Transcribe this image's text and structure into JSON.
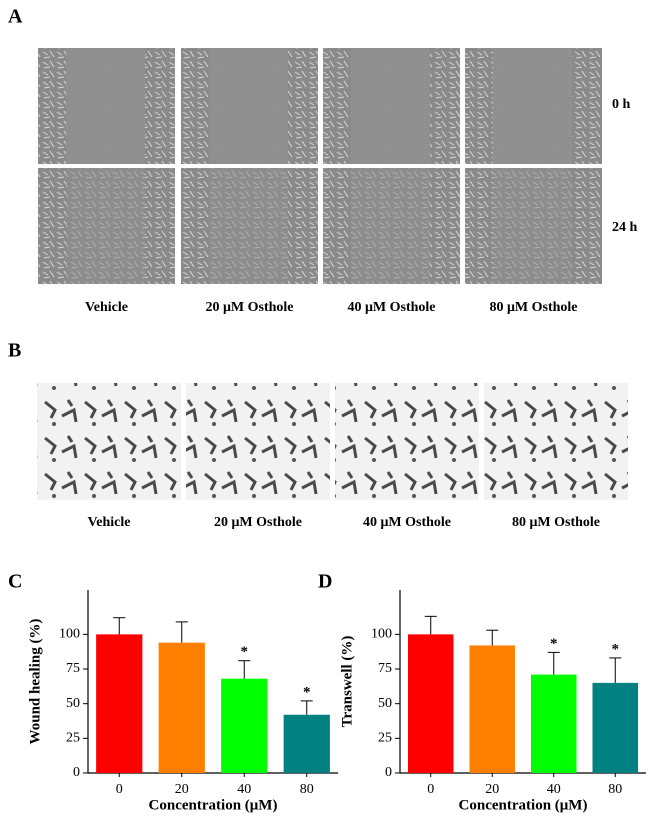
{
  "panel_labels": [
    "A",
    "B",
    "C",
    "D"
  ],
  "wound_images": {
    "timepoints": [
      "0 h",
      "24 h"
    ],
    "conditions": [
      "Vehicle",
      "20 μM Osthole",
      "40 μM Osthole",
      "80 μM Osthole"
    ]
  },
  "transwell_images": {
    "conditions": [
      "Vehicle",
      "20 μM Osthole",
      "40 μM Osthole",
      "80 μM Osthole"
    ]
  },
  "chart_data": [
    {
      "type": "bar",
      "x_label": "Concentration (μM)",
      "y_label": "Wound healing (%)",
      "categories": [
        "0",
        "20",
        "40",
        "80"
      ],
      "values": [
        100,
        94,
        68,
        42
      ],
      "errors": [
        12,
        15,
        13,
        10
      ],
      "colors": [
        "#ff0000",
        "#ff8000",
        "#00ff00",
        "#008080"
      ],
      "ylim": [
        0,
        132
      ],
      "yticks": [
        0,
        25,
        50,
        75,
        100
      ],
      "annotations": [
        {
          "index": 2,
          "text": "*"
        },
        {
          "index": 3,
          "text": "*"
        }
      ]
    },
    {
      "type": "bar",
      "x_label": "Concentration (μM)",
      "y_label": "Transwell (%)",
      "categories": [
        "0",
        "20",
        "40",
        "80"
      ],
      "values": [
        100,
        92,
        71,
        65
      ],
      "errors": [
        13,
        11,
        16,
        18
      ],
      "colors": [
        "#ff0000",
        "#ff8000",
        "#00ff00",
        "#008080"
      ],
      "ylim": [
        0,
        132
      ],
      "yticks": [
        0,
        25,
        50,
        75,
        100
      ],
      "annotations": [
        {
          "index": 2,
          "text": "*"
        },
        {
          "index": 3,
          "text": "*"
        }
      ]
    }
  ]
}
